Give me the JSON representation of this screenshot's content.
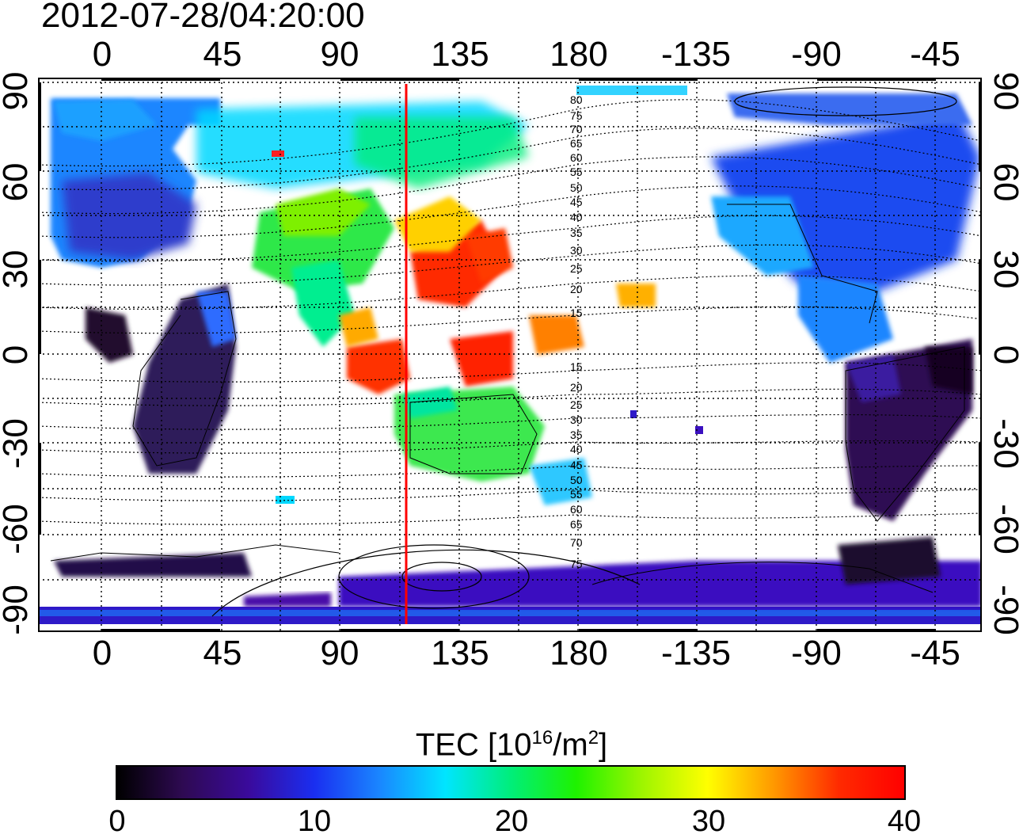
{
  "title": "2012-07-28/04:20:00",
  "x_ticks": [
    "0",
    "45",
    "90",
    "135",
    "180",
    "-135",
    "-90",
    "-45"
  ],
  "y_ticks": [
    "90",
    "60",
    "30",
    "0",
    "-30",
    "-60",
    "-90"
  ],
  "contour_labels_north": [
    "80",
    "75",
    "70",
    "65",
    "60",
    "55",
    "50",
    "45",
    "40",
    "35",
    "30",
    "25",
    "20",
    "15"
  ],
  "contour_labels_south": [
    "15",
    "20",
    "25",
    "30",
    "35",
    "40",
    "45",
    "50",
    "55",
    "60",
    "65",
    "70",
    "75"
  ],
  "colorbar": {
    "label_main": "TEC  [10",
    "label_exp1": "16",
    "label_mid": "/m",
    "label_exp2": "2",
    "label_end": "]",
    "ticks": [
      "0",
      "10",
      "20",
      "30",
      "40"
    ],
    "range": [
      0,
      40
    ],
    "colors": [
      "#000000",
      "#2e0a52",
      "#3a0a9c",
      "#1a2ef0",
      "#1a86ff",
      "#00e5ff",
      "#00ee7a",
      "#1ef200",
      "#9ef500",
      "#ffff00",
      "#ff9a00",
      "#ff2a00",
      "#ff0000"
    ]
  },
  "map": {
    "lon_range": [
      -25,
      335
    ],
    "lat_range": [
      -90,
      90
    ],
    "marker_color": "#ff0000",
    "marker_lon": 115
  }
}
